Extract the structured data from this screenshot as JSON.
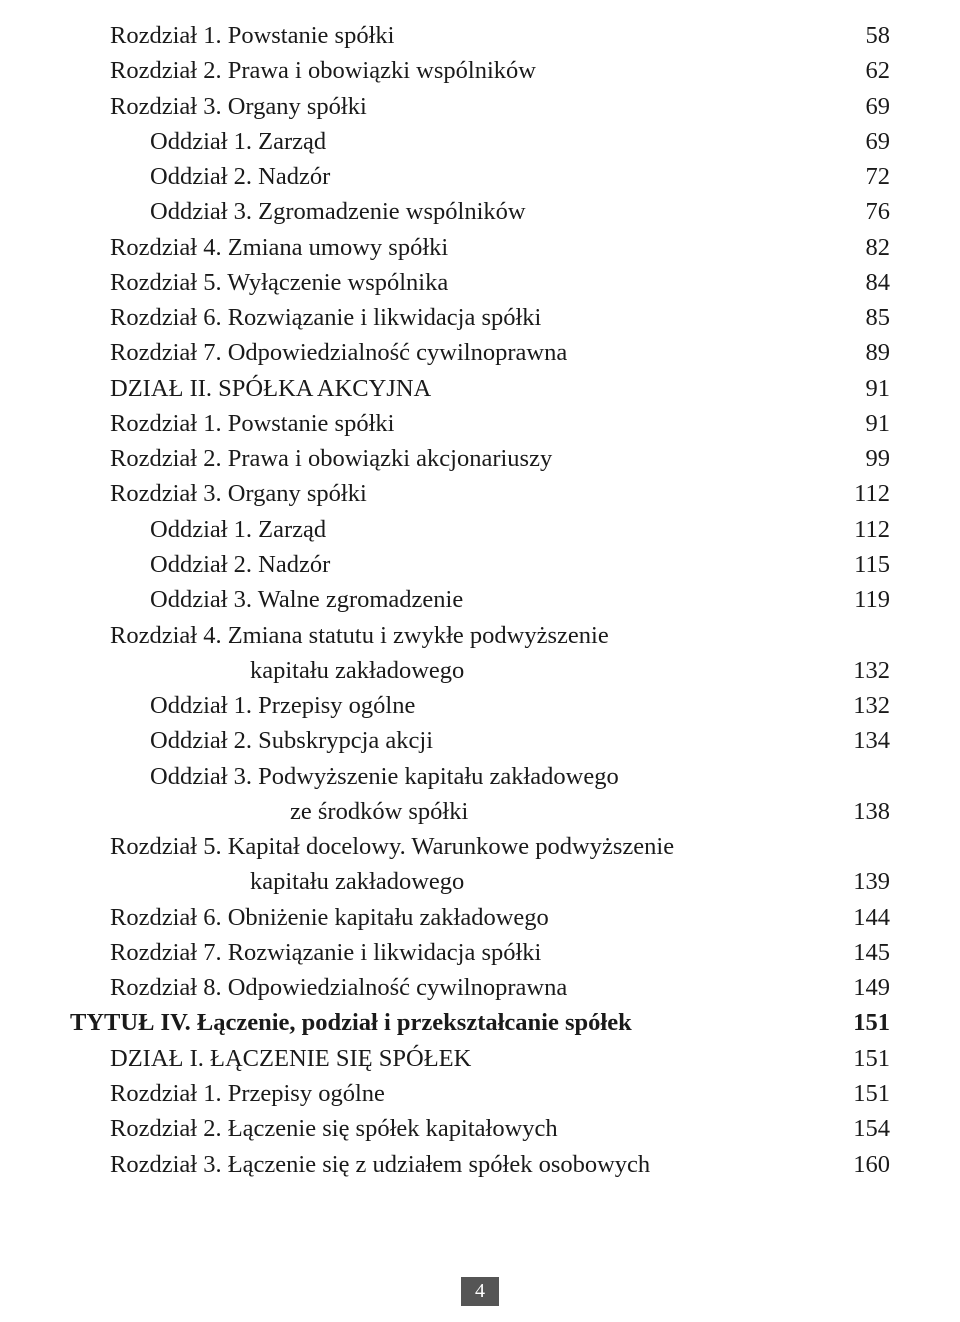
{
  "pageNumber": "4",
  "colors": {
    "background": "#ffffff",
    "text": "#1a1a1a",
    "pageBoxBg": "#555555",
    "pageBoxText": "#ffffff"
  },
  "typography": {
    "bodyFontSize": 24.5,
    "fontFamily": "Georgia, Times New Roman, serif",
    "lineHeight": 1.44
  },
  "entries": [
    {
      "label": "Rozdział 1. Powstanie spółki",
      "page": "58",
      "indent": 1,
      "bold": false
    },
    {
      "label": "Rozdział 2. Prawa i obowiązki wspólników",
      "page": "62",
      "indent": 1,
      "bold": false
    },
    {
      "label": "Rozdział 3. Organy spółki",
      "page": "69",
      "indent": 1,
      "bold": false
    },
    {
      "label": "Oddział 1. Zarząd",
      "page": "69",
      "indent": 2,
      "bold": false
    },
    {
      "label": "Oddział 2. Nadzór",
      "page": "72",
      "indent": 2,
      "bold": false
    },
    {
      "label": "Oddział 3. Zgromadzenie wspólników",
      "page": "76",
      "indent": 2,
      "bold": false
    },
    {
      "label": "Rozdział 4. Zmiana umowy spółki",
      "page": "82",
      "indent": 1,
      "bold": false
    },
    {
      "label": "Rozdział 5. Wyłączenie wspólnika",
      "page": "84",
      "indent": 1,
      "bold": false
    },
    {
      "label": "Rozdział 6. Rozwiązanie i likwidacja spółki",
      "page": "85",
      "indent": 1,
      "bold": false
    },
    {
      "label": "Rozdział 7. Odpowiedzialność cywilnoprawna",
      "page": "89",
      "indent": 1,
      "bold": false
    },
    {
      "label": "DZIAŁ II. SPÓŁKA AKCYJNA",
      "page": "91",
      "indent": 1,
      "bold": false
    },
    {
      "label": "Rozdział 1. Powstanie spółki",
      "page": "91",
      "indent": 1,
      "bold": false
    },
    {
      "label": "Rozdział 2. Prawa i obowiązki akcjonariuszy",
      "page": "99",
      "indent": 1,
      "bold": false
    },
    {
      "label": "Rozdział 3. Organy spółki",
      "page": "112",
      "indent": 1,
      "bold": false
    },
    {
      "label": "Oddział 1. Zarząd",
      "page": "112",
      "indent": 2,
      "bold": false
    },
    {
      "label": "Oddział 2. Nadzór",
      "page": "115",
      "indent": 2,
      "bold": false
    },
    {
      "label": "Oddział 3. Walne zgromadzenie",
      "page": "119",
      "indent": 2,
      "bold": false
    },
    {
      "label": "Rozdział 4. Zmiana statutu i zwykłe podwyższenie",
      "page": null,
      "indent": 1,
      "bold": false,
      "noDots": true
    },
    {
      "label": "kapitału zakładowego",
      "page": "132",
      "indent": "cont",
      "bold": false
    },
    {
      "label": "Oddział 1. Przepisy ogólne",
      "page": "132",
      "indent": 2,
      "bold": false
    },
    {
      "label": "Oddział 2. Subskrypcja akcji",
      "page": "134",
      "indent": 2,
      "bold": false
    },
    {
      "label": "Oddział 3. Podwyższenie kapitału zakładowego",
      "page": null,
      "indent": 2,
      "bold": false,
      "noDots": true
    },
    {
      "label": "ze środków spółki",
      "page": "138",
      "indent": "cont2",
      "bold": false
    },
    {
      "label": "Rozdział 5. Kapitał docelowy. Warunkowe podwyższenie",
      "page": null,
      "indent": 1,
      "bold": false,
      "noDots": true
    },
    {
      "label": "kapitału zakładowego",
      "page": "139",
      "indent": "cont",
      "bold": false
    },
    {
      "label": "Rozdział 6. Obniżenie kapitału zakładowego",
      "page": "144",
      "indent": 1,
      "bold": false
    },
    {
      "label": "Rozdział 7. Rozwiązanie i likwidacja spółki",
      "page": "145",
      "indent": 1,
      "bold": false
    },
    {
      "label": "Rozdział 8. Odpowiedzialność cywilnoprawna",
      "page": "149",
      "indent": 1,
      "bold": false
    },
    {
      "label": "TYTUŁ IV. Łączenie, podział i przekształcanie spółek",
      "page": "151",
      "indent": 0,
      "bold": true
    },
    {
      "label": "DZIAŁ I. ŁĄCZENIE SIĘ SPÓŁEK",
      "page": "151",
      "indent": 1,
      "bold": false
    },
    {
      "label": "Rozdział 1. Przepisy ogólne",
      "page": "151",
      "indent": 1,
      "bold": false
    },
    {
      "label": "Rozdział 2. Łączenie się spółek kapitałowych",
      "page": "154",
      "indent": 1,
      "bold": false
    },
    {
      "label": "Rozdział 3. Łączenie się z udziałem spółek osobowych",
      "page": "160",
      "indent": 1,
      "bold": false
    }
  ]
}
